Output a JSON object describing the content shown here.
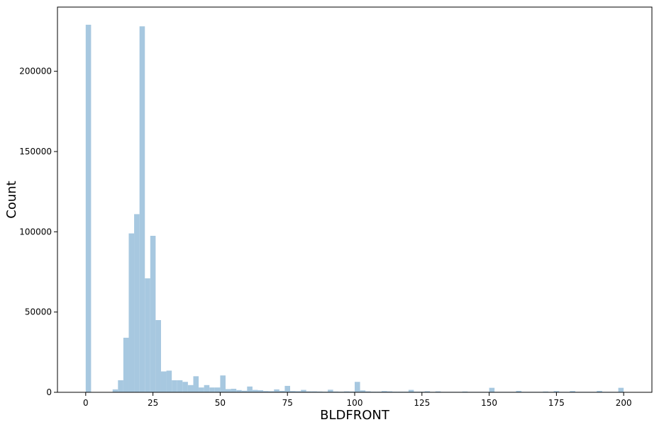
{
  "chart_data": {
    "type": "bar",
    "xlabel": "BLDFRONT",
    "ylabel": "Count",
    "xlim": [
      -10.5,
      210.5
    ],
    "ylim": [
      0,
      240000
    ],
    "x_ticks": [
      0,
      25,
      50,
      75,
      100,
      125,
      150,
      175,
      200
    ],
    "y_ticks": [
      0,
      50000,
      100000,
      150000,
      200000
    ],
    "bin_width": 2,
    "bar_color": "#a7c8e0",
    "grid": false,
    "legend": "none",
    "bins": [
      [
        0,
        229000
      ],
      [
        10,
        1800
      ],
      [
        12,
        7500
      ],
      [
        14,
        34000
      ],
      [
        16,
        99000
      ],
      [
        18,
        111000
      ],
      [
        20,
        228000
      ],
      [
        22,
        71000
      ],
      [
        24,
        97500
      ],
      [
        26,
        45000
      ],
      [
        28,
        13000
      ],
      [
        30,
        13500
      ],
      [
        32,
        7500
      ],
      [
        34,
        7500
      ],
      [
        36,
        6500
      ],
      [
        38,
        4500
      ],
      [
        40,
        10000
      ],
      [
        42,
        3000
      ],
      [
        44,
        4500
      ],
      [
        46,
        3000
      ],
      [
        48,
        3000
      ],
      [
        50,
        10500
      ],
      [
        52,
        2000
      ],
      [
        54,
        2200
      ],
      [
        56,
        1400
      ],
      [
        58,
        1000
      ],
      [
        60,
        3600
      ],
      [
        62,
        1500
      ],
      [
        64,
        1300
      ],
      [
        66,
        800
      ],
      [
        68,
        700
      ],
      [
        70,
        1800
      ],
      [
        72,
        900
      ],
      [
        74,
        4000
      ],
      [
        76,
        800
      ],
      [
        78,
        700
      ],
      [
        80,
        1500
      ],
      [
        82,
        600
      ],
      [
        84,
        600
      ],
      [
        86,
        500
      ],
      [
        88,
        400
      ],
      [
        90,
        1600
      ],
      [
        92,
        500
      ],
      [
        94,
        400
      ],
      [
        96,
        600
      ],
      [
        98,
        500
      ],
      [
        100,
        6500
      ],
      [
        102,
        1200
      ],
      [
        104,
        600
      ],
      [
        106,
        400
      ],
      [
        108,
        400
      ],
      [
        110,
        800
      ],
      [
        112,
        600
      ],
      [
        114,
        400
      ],
      [
        116,
        400
      ],
      [
        118,
        400
      ],
      [
        120,
        1500
      ],
      [
        122,
        400
      ],
      [
        124,
        400
      ],
      [
        126,
        700
      ],
      [
        128,
        300
      ],
      [
        130,
        600
      ],
      [
        132,
        300
      ],
      [
        134,
        300
      ],
      [
        136,
        300
      ],
      [
        138,
        300
      ],
      [
        140,
        500
      ],
      [
        142,
        300
      ],
      [
        144,
        300
      ],
      [
        146,
        300
      ],
      [
        148,
        300
      ],
      [
        150,
        2800
      ],
      [
        152,
        300
      ],
      [
        154,
        300
      ],
      [
        156,
        300
      ],
      [
        158,
        300
      ],
      [
        160,
        900
      ],
      [
        162,
        300
      ],
      [
        164,
        300
      ],
      [
        166,
        300
      ],
      [
        168,
        300
      ],
      [
        170,
        500
      ],
      [
        172,
        300
      ],
      [
        174,
        800
      ],
      [
        176,
        300
      ],
      [
        178,
        300
      ],
      [
        180,
        800
      ],
      [
        182,
        300
      ],
      [
        184,
        300
      ],
      [
        186,
        300
      ],
      [
        188,
        300
      ],
      [
        190,
        900
      ],
      [
        192,
        300
      ],
      [
        194,
        300
      ],
      [
        196,
        300
      ],
      [
        198,
        2800
      ]
    ]
  }
}
